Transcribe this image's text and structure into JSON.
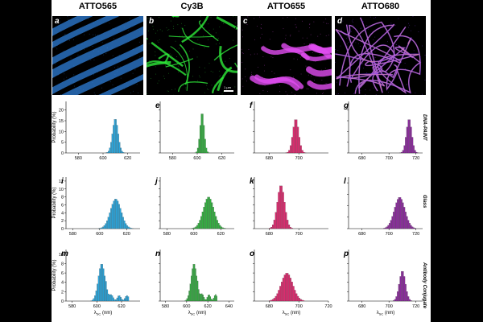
{
  "columns": [
    "ATTO565",
    "Cy3B",
    "ATTO655",
    "ATTO680"
  ],
  "image_panels": [
    {
      "label": "a",
      "color": "#2f7fd8"
    },
    {
      "label": "b",
      "color": "#2ee83a"
    },
    {
      "label": "c",
      "color": "#e04cf0"
    },
    {
      "label": "d",
      "color": "#8a3cff"
    }
  ],
  "scale_bar_label": "1 µm",
  "row_labels": [
    "DNA-PAINT",
    "Glass",
    "Antibody Conjugate"
  ],
  "ylabel": "Probability (%)",
  "xlabel_main": "λ",
  "xlabel_sub": "SC",
  "xlabel_unit": "(nm)",
  "colors": {
    "ATTO565": "#29a6dd",
    "Cy3B": "#33b040",
    "ATTO655": "#dc2a6e",
    "ATTO680": "#8a2a9c"
  },
  "chart_data": [
    {
      "type": "bar",
      "label": "",
      "dye": "ATTO565",
      "row": "DNA-PAINT",
      "xlim": [
        570,
        630
      ],
      "xticks": [
        580,
        600,
        620
      ],
      "ylim": [
        0,
        24
      ],
      "yticks": [
        0,
        5,
        10,
        15,
        20
      ],
      "peak": 610,
      "sigma": 2.3,
      "max": 16,
      "tail": 0
    },
    {
      "type": "bar",
      "label": "e",
      "dye": "Cy3B",
      "row": "DNA-PAINT",
      "xlim": [
        570,
        630
      ],
      "xticks": [
        580,
        600,
        620
      ],
      "ylim": [
        0,
        24
      ],
      "yticks": [
        0,
        5,
        10,
        15,
        20
      ],
      "peak": 604,
      "sigma": 1.7,
      "max": 19,
      "tail": 0
    },
    {
      "type": "bar",
      "label": "f",
      "dye": "ATTO655",
      "row": "DNA-PAINT",
      "xlim": [
        670,
        720
      ],
      "xticks": [
        680,
        700
      ],
      "ylim": [
        0,
        24
      ],
      "yticks": [
        0,
        5,
        10,
        15,
        20
      ],
      "peak": 698,
      "sigma": 2.0,
      "max": 16,
      "tail": 0
    },
    {
      "type": "bar",
      "label": "g",
      "dye": "ATTO680",
      "row": "DNA-PAINT",
      "xlim": [
        670,
        725
      ],
      "xticks": [
        680,
        700,
        720
      ],
      "ylim": [
        0,
        24
      ],
      "yticks": [
        0,
        5,
        10,
        15,
        20
      ],
      "peak": 715,
      "sigma": 2.0,
      "max": 16,
      "tail": 0
    },
    {
      "type": "bar",
      "label": "i",
      "dye": "ATTO565",
      "row": "Glass",
      "xlim": [
        575,
        630
      ],
      "xticks": [
        580,
        600,
        620
      ],
      "ylim": [
        0,
        13
      ],
      "yticks": [
        0,
        2,
        4,
        6,
        8,
        10,
        12
      ],
      "peak": 612,
      "sigma": 4.0,
      "max": 7.5,
      "tail": 0
    },
    {
      "type": "bar",
      "label": "j",
      "dye": "Cy3B",
      "row": "Glass",
      "xlim": [
        575,
        630
      ],
      "xticks": [
        580,
        600,
        620
      ],
      "ylim": [
        0,
        13
      ],
      "yticks": [
        0,
        2,
        4,
        6,
        8,
        10,
        12
      ],
      "peak": 611,
      "sigma": 4.0,
      "max": 8,
      "tail": 0
    },
    {
      "type": "bar",
      "label": "k",
      "dye": "ATTO655",
      "row": "Glass",
      "xlim": [
        670,
        720
      ],
      "xticks": [
        680,
        700
      ],
      "ylim": [
        0,
        13
      ],
      "yticks": [
        0,
        2,
        4,
        6,
        8,
        10,
        12
      ],
      "peak": 688,
      "sigma": 2.5,
      "max": 11,
      "tail": 0
    },
    {
      "type": "bar",
      "label": "l",
      "dye": "ATTO680",
      "row": "Glass",
      "xlim": [
        670,
        725
      ],
      "xticks": [
        680,
        700,
        720
      ],
      "ylim": [
        0,
        9
      ],
      "yticks": [
        0,
        2,
        4,
        6,
        8
      ],
      "peak": 708,
      "sigma": 4.0,
      "max": 5.5,
      "tail": 0
    },
    {
      "type": "bar",
      "label": "m",
      "dye": "ATTO565",
      "row": "Antibody Conjugate",
      "xlim": [
        575,
        635
      ],
      "xticks": [
        580,
        600,
        620
      ],
      "ylim": [
        0,
        11
      ],
      "yticks": [
        0,
        2,
        4,
        6,
        8,
        10
      ],
      "peak": 604,
      "sigma": 2.8,
      "max": 8,
      "tail": 1.2
    },
    {
      "type": "bar",
      "label": "n",
      "dye": "Cy3B",
      "row": "Antibody Conjugate",
      "xlim": [
        575,
        645
      ],
      "xticks": [
        580,
        600,
        620,
        640
      ],
      "ylim": [
        0,
        11
      ],
      "yticks": [
        0,
        2,
        4,
        6,
        8,
        10
      ],
      "peak": 607,
      "sigma": 2.8,
      "max": 8,
      "tail": 1.4
    },
    {
      "type": "bar",
      "label": "o",
      "dye": "ATTO655",
      "row": "Antibody Conjugate",
      "xlim": [
        670,
        720
      ],
      "xticks": [
        680,
        700,
        720
      ],
      "ylim": [
        0,
        11
      ],
      "yticks": [
        0,
        2,
        4,
        6,
        8,
        10
      ],
      "peak": 692,
      "sigma": 4.0,
      "max": 6,
      "tail": 0
    },
    {
      "type": "bar",
      "label": "p",
      "dye": "ATTO680",
      "row": "Antibody Conjugate",
      "xlim": [
        670,
        725
      ],
      "xticks": [
        680,
        700,
        720
      ],
      "ylim": [
        0,
        11
      ],
      "yticks": [
        0,
        2,
        4,
        6,
        8,
        10
      ],
      "peak": 710,
      "sigma": 2.3,
      "max": 6.5,
      "tail": 0
    }
  ]
}
